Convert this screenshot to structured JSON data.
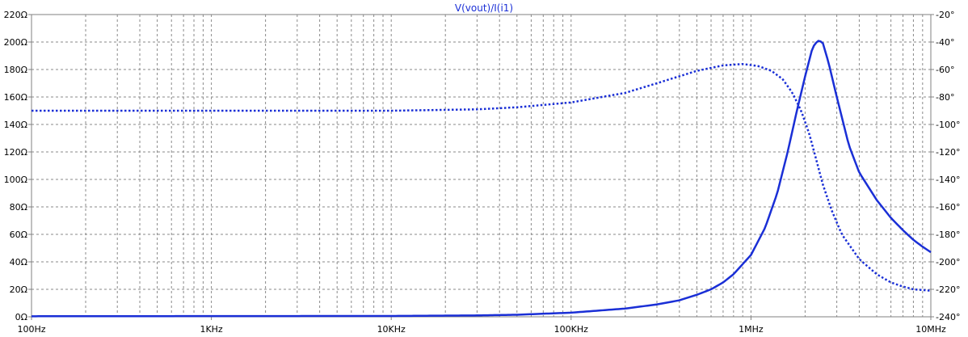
{
  "chart_data": {
    "type": "line",
    "title": "V(vout)/I(i1)",
    "x_scale": "log",
    "xlim": [
      100,
      10000000
    ],
    "x_ticks": [
      {
        "value": 100,
        "label": "100Hz"
      },
      {
        "value": 1000,
        "label": "1KHz"
      },
      {
        "value": 10000,
        "label": "10KHz"
      },
      {
        "value": 100000,
        "label": "100KHz"
      },
      {
        "value": 1000000,
        "label": "1MHz"
      },
      {
        "value": 10000000,
        "label": "10MHz"
      }
    ],
    "y_left": {
      "unit": "Ω",
      "lim": [
        0,
        220
      ],
      "ticks": [
        {
          "value": 0,
          "label": "0Ω"
        },
        {
          "value": 20,
          "label": "20Ω"
        },
        {
          "value": 40,
          "label": "40Ω"
        },
        {
          "value": 60,
          "label": "60Ω"
        },
        {
          "value": 80,
          "label": "80Ω"
        },
        {
          "value": 100,
          "label": "100Ω"
        },
        {
          "value": 120,
          "label": "120Ω"
        },
        {
          "value": 140,
          "label": "140Ω"
        },
        {
          "value": 160,
          "label": "160Ω"
        },
        {
          "value": 180,
          "label": "180Ω"
        },
        {
          "value": 200,
          "label": "200Ω"
        },
        {
          "value": 220,
          "label": "220Ω"
        }
      ]
    },
    "y_right": {
      "unit": "°",
      "lim": [
        -240,
        -20
      ],
      "ticks": [
        {
          "value": -20,
          "label": "-20°"
        },
        {
          "value": -40,
          "label": "-40°"
        },
        {
          "value": -60,
          "label": "-60°"
        },
        {
          "value": -80,
          "label": "-80°"
        },
        {
          "value": -100,
          "label": "-100°"
        },
        {
          "value": -120,
          "label": "-120°"
        },
        {
          "value": -140,
          "label": "-140°"
        },
        {
          "value": -160,
          "label": "-160°"
        },
        {
          "value": -180,
          "label": "-180°"
        },
        {
          "value": -200,
          "label": "-200°"
        },
        {
          "value": -220,
          "label": "-220°"
        },
        {
          "value": -240,
          "label": "-240°"
        }
      ]
    },
    "grid": true,
    "series": [
      {
        "axis": "left",
        "style": "solid",
        "color": "#1a2fd6",
        "points": [
          [
            100,
            0.4
          ],
          [
            1000,
            0.5
          ],
          [
            10000,
            0.6
          ],
          [
            30000,
            1
          ],
          [
            50000,
            1.5
          ],
          [
            100000,
            3
          ],
          [
            200000,
            6
          ],
          [
            300000,
            9
          ],
          [
            400000,
            12
          ],
          [
            500000,
            16
          ],
          [
            600000,
            20
          ],
          [
            700000,
            25
          ],
          [
            800000,
            31
          ],
          [
            1000000,
            45
          ],
          [
            1200000,
            65
          ],
          [
            1400000,
            90
          ],
          [
            1600000,
            120
          ],
          [
            1800000,
            150
          ],
          [
            2000000,
            175
          ],
          [
            2200000,
            196
          ],
          [
            2350000,
            201
          ],
          [
            2500000,
            200
          ],
          [
            2700000,
            185
          ],
          [
            3000000,
            160
          ],
          [
            3500000,
            125
          ],
          [
            4000000,
            105
          ],
          [
            5000000,
            85
          ],
          [
            6000000,
            72
          ],
          [
            7000000,
            63
          ],
          [
            8000000,
            56
          ],
          [
            9000000,
            51
          ],
          [
            10000000,
            47
          ]
        ]
      },
      {
        "axis": "right",
        "style": "dotted",
        "color": "#1a2fd6",
        "points": [
          [
            100,
            -90
          ],
          [
            1000,
            -90
          ],
          [
            10000,
            -90
          ],
          [
            30000,
            -89
          ],
          [
            50000,
            -87.5
          ],
          [
            100000,
            -84
          ],
          [
            200000,
            -77
          ],
          [
            300000,
            -70
          ],
          [
            500000,
            -61
          ],
          [
            700000,
            -57
          ],
          [
            900000,
            -56
          ],
          [
            1100000,
            -57.5
          ],
          [
            1300000,
            -61
          ],
          [
            1500000,
            -67
          ],
          [
            1700000,
            -77
          ],
          [
            1900000,
            -90
          ],
          [
            2100000,
            -106
          ],
          [
            2300000,
            -125
          ],
          [
            2500000,
            -143
          ],
          [
            2800000,
            -162
          ],
          [
            3200000,
            -180
          ],
          [
            4000000,
            -198
          ],
          [
            5000000,
            -209
          ],
          [
            6000000,
            -215
          ],
          [
            7000000,
            -218
          ],
          [
            8000000,
            -220
          ],
          [
            10000000,
            -221
          ]
        ]
      }
    ]
  }
}
